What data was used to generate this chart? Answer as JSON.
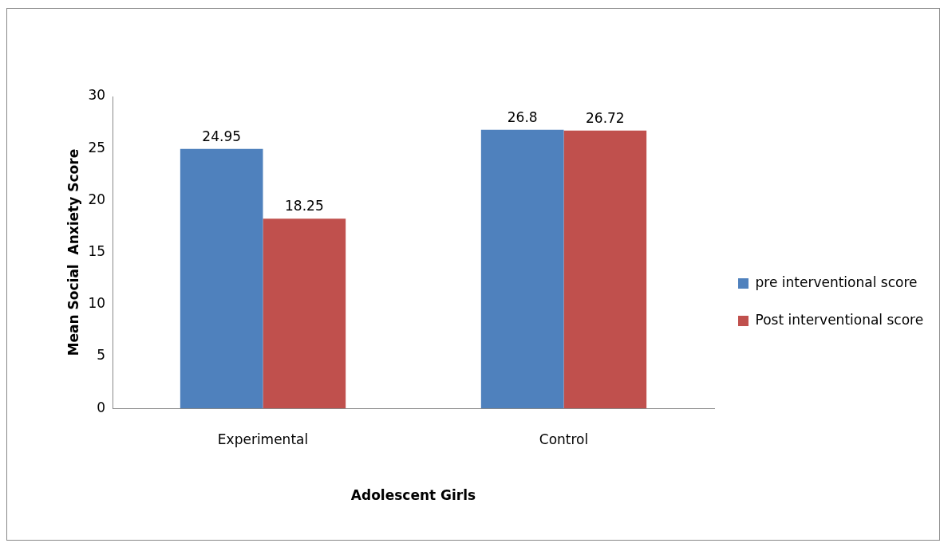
{
  "chart_data": {
    "type": "bar",
    "xlabel": "Adolescent Girls",
    "ylabel": "Mean Social  Anxiety Score",
    "categories": [
      "Experimental",
      "Control"
    ],
    "series": [
      {
        "name": "pre interventional score",
        "color": "#4f81bd",
        "values": [
          24.95,
          26.8
        ]
      },
      {
        "name": "Post interventional score",
        "color": "#c0504d",
        "values": [
          18.25,
          26.72
        ]
      }
    ],
    "ylim": [
      0,
      30
    ],
    "yticks": [
      0,
      5,
      10,
      15,
      20,
      25,
      30
    ],
    "grid": false,
    "legend": "right",
    "data_labels": true
  }
}
